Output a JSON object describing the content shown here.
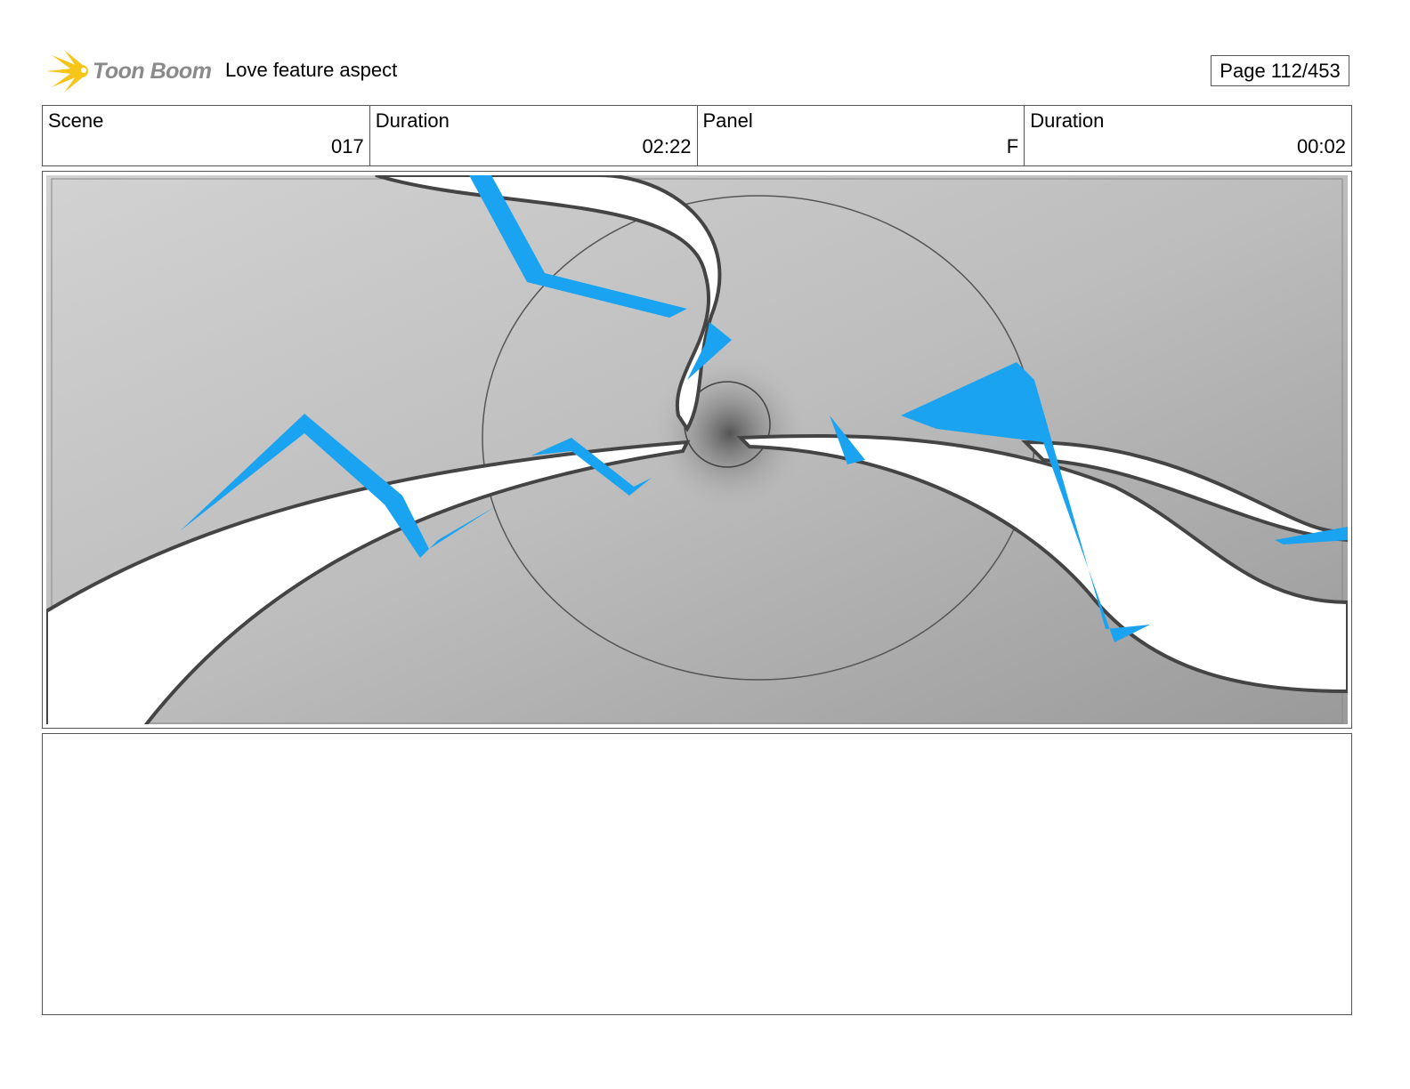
{
  "header": {
    "logo_text": "Toon Boom",
    "project_title": "Love feature aspect",
    "page_label": "Page 112/453"
  },
  "info": [
    {
      "label": "Scene",
      "value": "017"
    },
    {
      "label": "Duration",
      "value": "02:22"
    },
    {
      "label": "Panel",
      "value": "F"
    },
    {
      "label": "Duration",
      "value": "00:02"
    }
  ],
  "panel": {
    "image": "storyboard-sketch",
    "accent_color": "#1aa3f0"
  },
  "notes": {
    "text": ""
  }
}
